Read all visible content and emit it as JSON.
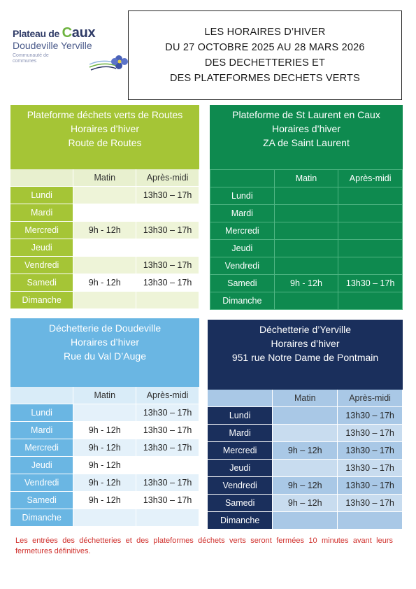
{
  "logo": {
    "line1_prefix": "Plateau de",
    "line1_brand_c": "C",
    "line1_brand_rest": "aux",
    "line2": "Doudeville Yerville",
    "line3": "Communauté de communes"
  },
  "title": {
    "line1": "LES HORAIRES D’HIVER",
    "line2": "DU 27 OCTOBRE 2025 AU 28 MARS 2026",
    "line3": "DES DECHETTERIES ET",
    "line4": "DES PLATEFORMES DECHETS VERTS"
  },
  "columns": {
    "morning": "Matin",
    "afternoon": "Après-midi"
  },
  "blocks": {
    "routes": {
      "name": "Plateforme déchets verts de Routes",
      "subtitle": "Horaires d’hiver",
      "address": "Route de Routes",
      "rows": [
        {
          "day": "Lundi",
          "morning": "",
          "afternoon": "13h30 – 17h"
        },
        {
          "day": "Mardi",
          "morning": "",
          "afternoon": ""
        },
        {
          "day": "Mercredi",
          "morning": "9h - 12h",
          "afternoon": "13h30 – 17h"
        },
        {
          "day": "Jeudi",
          "morning": "",
          "afternoon": ""
        },
        {
          "day": "Vendredi",
          "morning": "",
          "afternoon": "13h30 – 17h"
        },
        {
          "day": "Samedi",
          "morning": "9h - 12h",
          "afternoon": "13h30 – 17h"
        },
        {
          "day": "Dimanche",
          "morning": "",
          "afternoon": ""
        }
      ]
    },
    "laurent": {
      "name": "Plateforme de St Laurent en Caux",
      "subtitle": "Horaires d’hiver",
      "address": "ZA de Saint Laurent",
      "rows": [
        {
          "day": "Lundi",
          "morning": "",
          "afternoon": ""
        },
        {
          "day": "Mardi",
          "morning": "",
          "afternoon": ""
        },
        {
          "day": "Mercredi",
          "morning": "",
          "afternoon": ""
        },
        {
          "day": "Jeudi",
          "morning": "",
          "afternoon": ""
        },
        {
          "day": "Vendredi",
          "morning": "",
          "afternoon": ""
        },
        {
          "day": "Samedi",
          "morning": "9h - 12h",
          "afternoon": "13h30 – 17h"
        },
        {
          "day": "Dimanche",
          "morning": "",
          "afternoon": ""
        }
      ]
    },
    "doudeville": {
      "name": "Déchetterie de Doudeville",
      "subtitle": "Horaires d’hiver",
      "address": "Rue du Val D’Auge",
      "rows": [
        {
          "day": "Lundi",
          "morning": "",
          "afternoon": "13h30 – 17h"
        },
        {
          "day": "Mardi",
          "morning": "9h - 12h",
          "afternoon": "13h30 – 17h"
        },
        {
          "day": "Mercredi",
          "morning": "9h - 12h",
          "afternoon": "13h30 – 17h"
        },
        {
          "day": "Jeudi",
          "morning": "9h - 12h",
          "afternoon": ""
        },
        {
          "day": "Vendredi",
          "morning": "9h - 12h",
          "afternoon": "13h30 – 17h"
        },
        {
          "day": "Samedi",
          "morning": "9h - 12h",
          "afternoon": "13h30 – 17h"
        },
        {
          "day": "Dimanche",
          "morning": "",
          "afternoon": ""
        }
      ]
    },
    "yerville": {
      "name": "Déchetterie d’Yerville",
      "subtitle": "Horaires d’hiver",
      "address": "951 rue Notre Dame de Pontmain",
      "rows": [
        {
          "day": "Lundi",
          "morning": "",
          "afternoon": "13h30 – 17h"
        },
        {
          "day": "Mardi",
          "morning": "",
          "afternoon": "13h30 – 17h"
        },
        {
          "day": "Mercredi",
          "morning": "9h – 12h",
          "afternoon": "13h30 – 17h"
        },
        {
          "day": "Jeudi",
          "morning": "",
          "afternoon": "13h30 – 17h"
        },
        {
          "day": "Vendredi",
          "morning": "9h – 12h",
          "afternoon": "13h30 – 17h"
        },
        {
          "day": "Samedi",
          "morning": "9h – 12h",
          "afternoon": "13h30 – 17h"
        },
        {
          "day": "Dimanche",
          "morning": "",
          "afternoon": ""
        }
      ]
    }
  },
  "note": "Les entrées des déchetteries et des plateformes déchets verts seront fermées 10 minutes avant leurs fermetures définitives.",
  "colors": {
    "lime": "#a5c536",
    "green": "#0e8a4f",
    "light_blue": "#6ab6e3",
    "navy": "#1a2f5c",
    "note_red": "#d0312d"
  }
}
